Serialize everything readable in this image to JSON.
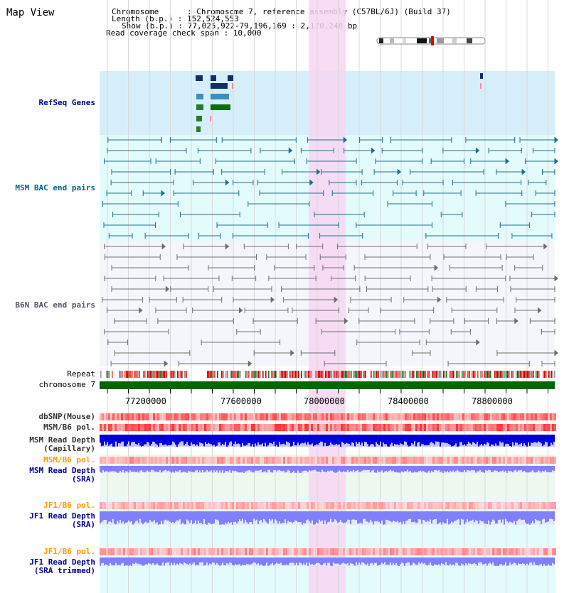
{
  "header": {
    "view_title": "Map View",
    "info_lines": [
      "Chromosome      : Chromosome 7, reference assembly (C57BL/6J) (Build 37)",
      "Length (b.p.) : 152,524,553",
      "Show (b.p.) : 77,025,922-79,196,169 : 2,170,248 bp",
      "Read coverage check span : 10,000"
    ]
  },
  "tracks": {
    "refseq_label": "RefSeq Genes",
    "msm_bac_label": "MSM BAC end pairs",
    "b6n_bac_label": "B6N BAC end pairs",
    "repeat_label": "Repeat",
    "chromosome_label": "chromosome 7",
    "dbsnp_label": "dbSNP(Mouse)",
    "msm_b6_pol_label": "MSM/B6 pol.",
    "msm_depth_cap_label": "MSM Read Depth\n(Capillary)",
    "msm_b6_pol2_label": "MSM/B6 pol.",
    "msm_depth_sra_label": "MSM Read Depth\n(SRA)",
    "jf1_b6_pol_label": "JF1/B6 pol.",
    "jf1_depth_sra_label": "JF1 Read Depth\n(SRA)",
    "jf1_b6_pol2_label": "JF1/B6 pol.",
    "jf1_depth_trim_label": "JF1 Read Depth\n(SRA trimmed)"
  },
  "axis": {
    "tick_labels": [
      "77200000",
      "77600000",
      "78000000",
      "78400000",
      "78800000"
    ]
  },
  "colors": {
    "refseq_bg": "#d6eefa",
    "msm_bg": "#e4fbfb",
    "b6n_bg": "#f4f6fb",
    "highlight": "#f7d6f2",
    "msm_line": "#1f6e8c",
    "b6n_line": "#6e6e6e",
    "chromosome": "#006600",
    "depth_dark": "#0000e0",
    "depth_light": "#8080ff",
    "pol_label_orange": "#ff9900",
    "depth_label_blue": "#000099",
    "refseq_label_blue": "#000099",
    "msm_label_teal": "#00668a",
    "b6n_label_gray": "#555566"
  }
}
